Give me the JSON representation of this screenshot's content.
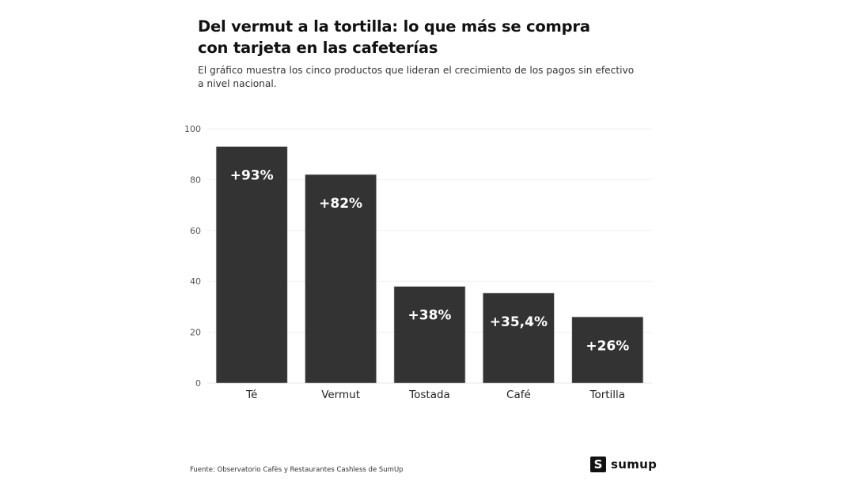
{
  "title": "Del vermut a la tortilla: lo que más se compra con tarjeta en las cafeterías",
  "subtitle": "El gráfico muestra los cinco productos que lideran el crecimiento de los pagos sin efectivo a nivel nacional.",
  "source": "Fuente: Observatorio Cafès y Restaurantes Cashless de SumUp",
  "logo": {
    "text": "sumup",
    "mark": "S",
    "icon": "sumup-logo-icon"
  },
  "chart_data": {
    "type": "bar",
    "categories": [
      "Té",
      "Vermut",
      "Tostada",
      "Café",
      "Tortilla"
    ],
    "values": [
      93,
      82,
      38,
      35.4,
      26
    ],
    "data_labels": [
      "+93%",
      "+82%",
      "+38%",
      "+35,4%",
      "+26%"
    ],
    "ylim": [
      0,
      100
    ],
    "yticks": [
      0,
      20,
      40,
      60,
      80,
      100
    ],
    "xlabel": "",
    "ylabel": "",
    "grid": true,
    "bar_color": "#333333",
    "label_color": "#ffffff"
  }
}
